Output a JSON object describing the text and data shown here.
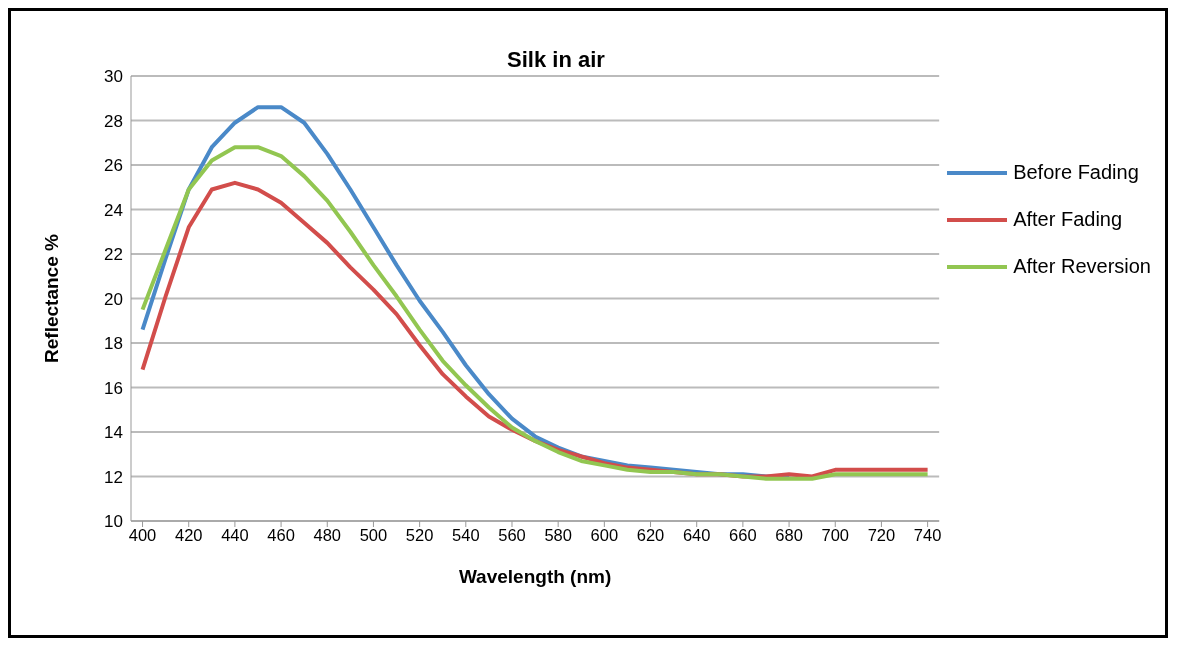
{
  "chart_data": {
    "type": "line",
    "title": "Silk in air",
    "xlabel": "Wavelength (nm)",
    "ylabel": "Reflectance %",
    "x": [
      400,
      410,
      420,
      430,
      440,
      450,
      460,
      470,
      480,
      490,
      500,
      510,
      520,
      530,
      540,
      550,
      560,
      570,
      580,
      590,
      600,
      610,
      620,
      630,
      640,
      650,
      660,
      670,
      680,
      690,
      700,
      710,
      720,
      730,
      740
    ],
    "series": [
      {
        "name": "Before Fading",
        "color": "#4a89c8",
        "values": [
          18.6,
          21.8,
          24.9,
          26.8,
          27.9,
          28.6,
          28.6,
          27.9,
          26.5,
          24.9,
          23.2,
          21.5,
          19.9,
          18.5,
          17.0,
          15.7,
          14.6,
          13.8,
          13.3,
          12.9,
          12.7,
          12.5,
          12.4,
          12.3,
          12.2,
          12.1,
          12.1,
          12.0,
          12.0,
          null,
          null,
          null,
          null,
          null,
          null
        ]
      },
      {
        "name": "After Fading",
        "color": "#d24d4b",
        "values": [
          16.8,
          20.1,
          23.2,
          24.9,
          25.2,
          24.9,
          24.3,
          23.4,
          22.5,
          21.4,
          20.4,
          19.3,
          17.9,
          16.6,
          15.6,
          14.7,
          14.1,
          13.6,
          13.2,
          12.9,
          12.6,
          12.4,
          12.3,
          12.2,
          12.1,
          12.1,
          12.0,
          12.0,
          12.1,
          12.0,
          12.3,
          12.3,
          12.3,
          12.3,
          12.3
        ]
      },
      {
        "name": "After Reversion",
        "color": "#92c651",
        "values": [
          19.5,
          22.2,
          24.9,
          26.2,
          26.8,
          26.8,
          26.4,
          25.5,
          24.4,
          23.0,
          21.5,
          20.1,
          18.6,
          17.2,
          16.1,
          15.1,
          14.2,
          13.6,
          13.1,
          12.7,
          12.5,
          12.3,
          12.2,
          12.2,
          12.1,
          12.1,
          12.0,
          11.9,
          11.9,
          11.9,
          12.1,
          12.1,
          12.1,
          12.1,
          12.1
        ]
      }
    ],
    "xlim": [
      395,
      745
    ],
    "xticks": [
      400,
      420,
      440,
      460,
      480,
      500,
      520,
      540,
      560,
      580,
      600,
      620,
      640,
      660,
      680,
      700,
      720,
      740
    ],
    "ylim": [
      10,
      30
    ],
    "yticks": [
      10,
      12,
      14,
      16,
      18,
      20,
      22,
      24,
      26,
      28,
      30
    ],
    "grid": "y",
    "legend": "right",
    "marker": "none",
    "line_style": "solid"
  }
}
